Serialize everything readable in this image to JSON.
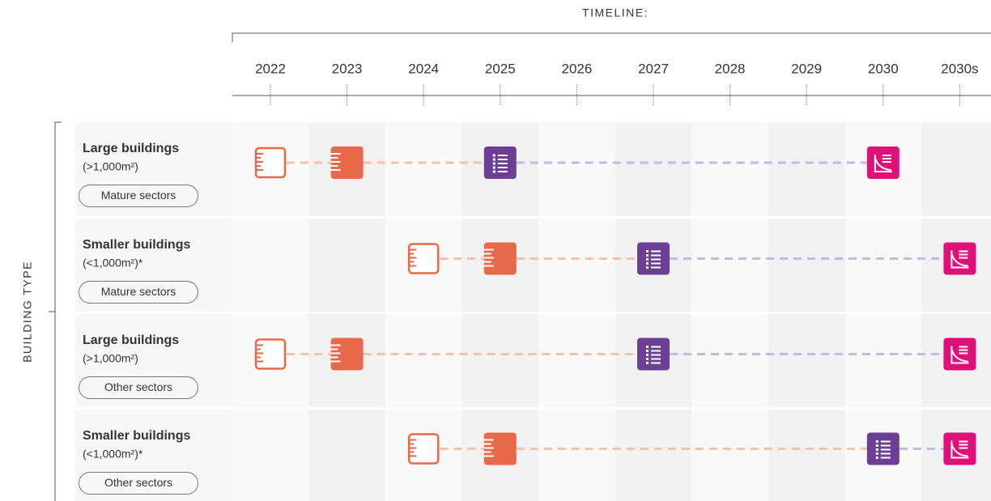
{
  "header": {
    "title": "TIMELINE:",
    "years": [
      "2022",
      "2023",
      "2024",
      "2025",
      "2026",
      "2027",
      "2028",
      "2029",
      "2030",
      "2030s"
    ]
  },
  "axis_label": "BUILDING TYPE",
  "rows": [
    {
      "title": "Large buildings",
      "subtitle": "(>1,000m²)",
      "tag": "Mature sectors"
    },
    {
      "title": "Smaller buildings",
      "subtitle": "(<1,000m²)*",
      "tag": "Mature sectors"
    },
    {
      "title": "Large buildings",
      "subtitle": "(>1,000m²)",
      "tag": "Other sectors"
    },
    {
      "title": "Smaller buildings",
      "subtitle": "(<1,000m²)*",
      "tag": "Other sectors"
    }
  ]
}
